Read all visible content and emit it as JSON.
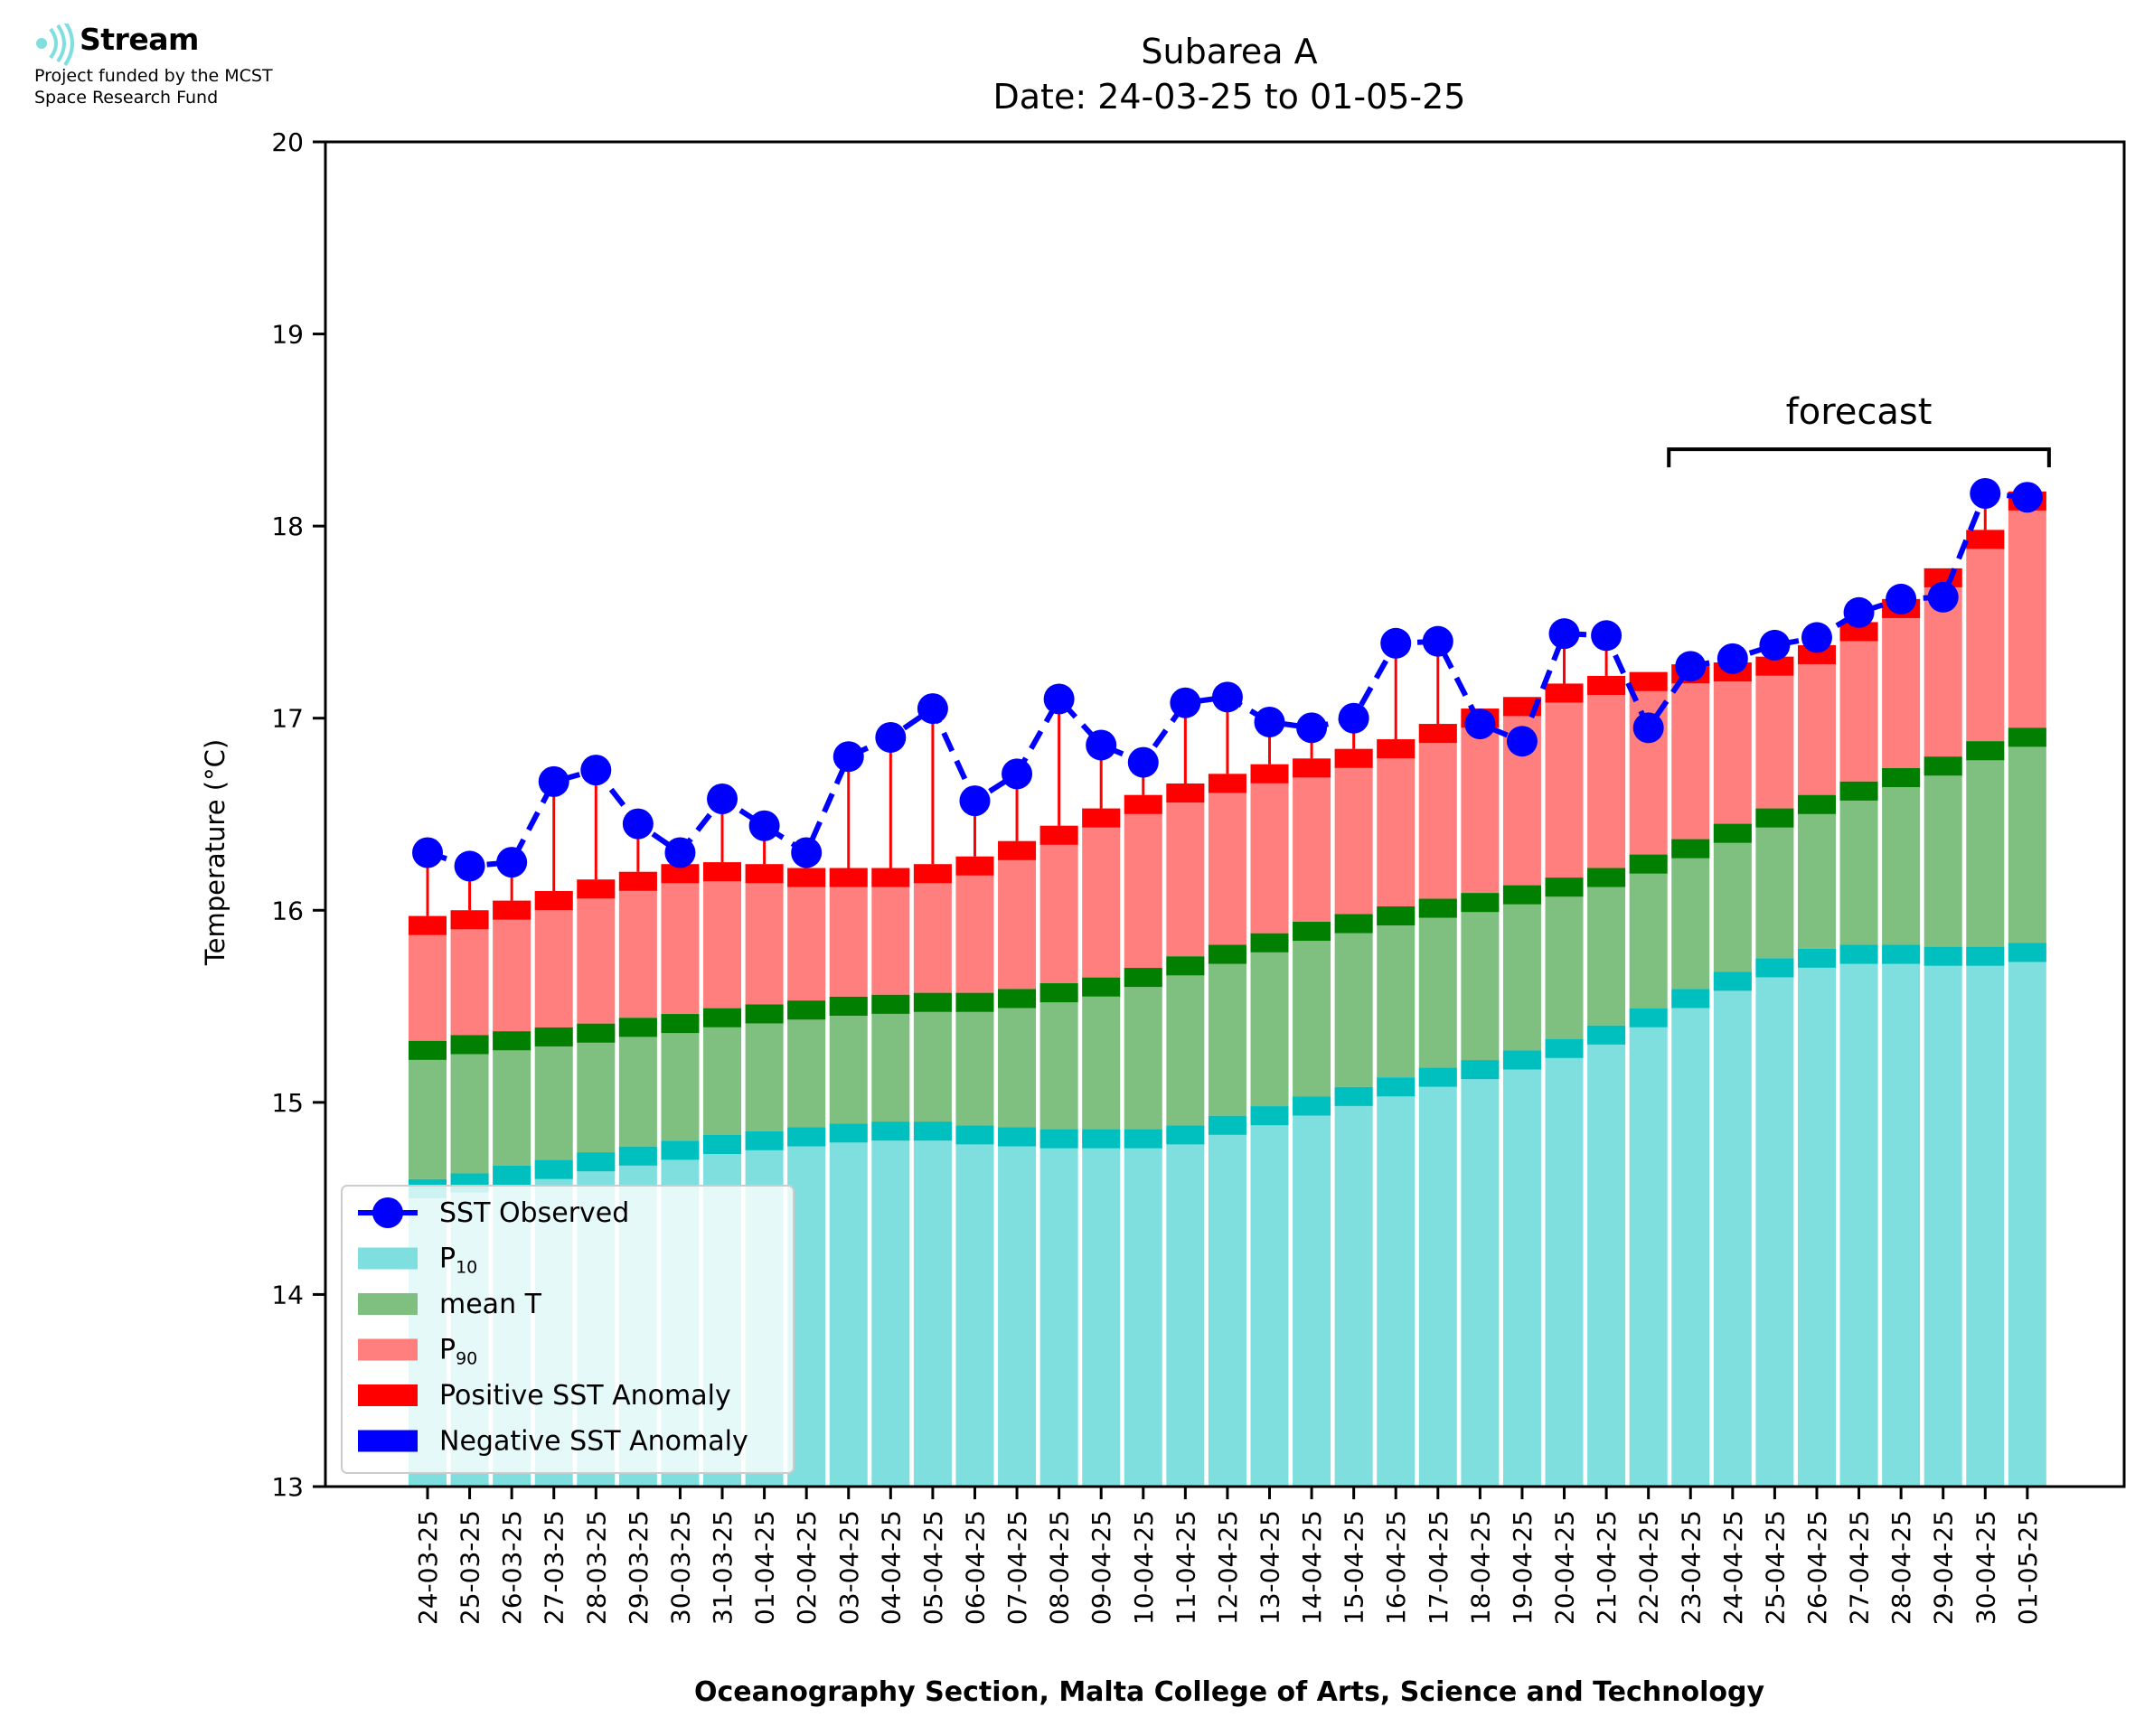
{
  "logo": {
    "icon": "stream-waves-icon",
    "name": "Stream",
    "funded_line1": "Project funded by the MCST",
    "funded_line2": "Space Research Fund",
    "color": "#7fdfdf"
  },
  "chart_data": {
    "type": "bar",
    "title": "Subarea A",
    "subtitle": "Date: 24-03-25 to 01-05-25",
    "xlabel": "Oceanography Section, Malta College of Arts, Science and Technology",
    "ylabel": "Temperature (°C)",
    "ylim": [
      13,
      20
    ],
    "yticks": [
      "13",
      "14",
      "15",
      "16",
      "17",
      "18",
      "19",
      "20"
    ],
    "grid": false,
    "legend_position": "bottom-left",
    "categories": [
      "24-03-25",
      "25-03-25",
      "26-03-25",
      "27-03-25",
      "28-03-25",
      "29-03-25",
      "30-03-25",
      "31-03-25",
      "01-04-25",
      "02-04-25",
      "03-04-25",
      "04-04-25",
      "05-04-25",
      "06-04-25",
      "07-04-25",
      "08-04-25",
      "09-04-25",
      "10-04-25",
      "11-04-25",
      "12-04-25",
      "13-04-25",
      "14-04-25",
      "15-04-25",
      "16-04-25",
      "17-04-25",
      "18-04-25",
      "19-04-25",
      "20-04-25",
      "21-04-25",
      "22-04-25",
      "23-04-25",
      "24-04-25",
      "25-04-25",
      "26-04-25",
      "27-04-25",
      "28-04-25",
      "29-04-25",
      "30-04-25",
      "01-05-25"
    ],
    "series": [
      {
        "name": "SST Observed",
        "color": "#0000ff",
        "values": [
          16.3,
          16.23,
          16.25,
          16.67,
          16.73,
          16.45,
          16.3,
          16.58,
          16.44,
          16.3,
          16.8,
          16.9,
          17.05,
          16.57,
          16.71,
          17.1,
          16.86,
          16.77,
          17.08,
          17.11,
          16.98,
          16.95,
          17.0,
          17.39,
          17.4,
          16.97,
          16.88,
          17.44,
          17.43,
          16.95,
          17.27,
          17.31,
          17.38,
          17.42,
          17.55,
          17.62,
          17.63,
          18.17,
          18.15
        ]
      },
      {
        "name": "P",
        "name_subscript": "10",
        "color": "#7fdfdf",
        "values": [
          14.6,
          14.63,
          14.67,
          14.7,
          14.74,
          14.77,
          14.8,
          14.83,
          14.85,
          14.87,
          14.89,
          14.9,
          14.9,
          14.88,
          14.87,
          14.86,
          14.86,
          14.86,
          14.88,
          14.93,
          14.98,
          15.03,
          15.08,
          15.13,
          15.18,
          15.22,
          15.27,
          15.33,
          15.4,
          15.49,
          15.59,
          15.68,
          15.75,
          15.8,
          15.82,
          15.82,
          15.81,
          15.81,
          15.83
        ]
      },
      {
        "name": "mean T",
        "color": "#7fbf7f",
        "values": [
          15.32,
          15.35,
          15.37,
          15.39,
          15.41,
          15.44,
          15.46,
          15.49,
          15.51,
          15.53,
          15.55,
          15.56,
          15.57,
          15.57,
          15.59,
          15.62,
          15.65,
          15.7,
          15.76,
          15.82,
          15.88,
          15.94,
          15.98,
          16.02,
          16.06,
          16.09,
          16.13,
          16.17,
          16.22,
          16.29,
          16.37,
          16.45,
          16.53,
          16.6,
          16.67,
          16.74,
          16.8,
          16.88,
          16.95
        ]
      },
      {
        "name": "P",
        "name_subscript": "90",
        "color": "#ff7f7f",
        "values": [
          15.97,
          16.0,
          16.05,
          16.1,
          16.16,
          16.2,
          16.24,
          16.25,
          16.24,
          16.22,
          16.22,
          16.22,
          16.24,
          16.28,
          16.36,
          16.44,
          16.53,
          16.6,
          16.66,
          16.71,
          16.76,
          16.79,
          16.84,
          16.89,
          16.97,
          17.05,
          17.11,
          17.18,
          17.22,
          17.24,
          17.28,
          17.29,
          17.32,
          17.38,
          17.5,
          17.62,
          17.78,
          17.98,
          18.18
        ]
      },
      {
        "name": "Positive SST Anomaly",
        "color": "#ff0000"
      },
      {
        "name": "Negative SST Anomaly",
        "color": "#0000ff"
      }
    ],
    "annotations": [
      {
        "text": "forecast",
        "from": "23-04-25",
        "to": "01-05-25",
        "y": 18.4
      }
    ],
    "band_color_p10": "#00bfbf",
    "band_color_mean": "#007f00",
    "band_color_p90": "#ff0000"
  }
}
